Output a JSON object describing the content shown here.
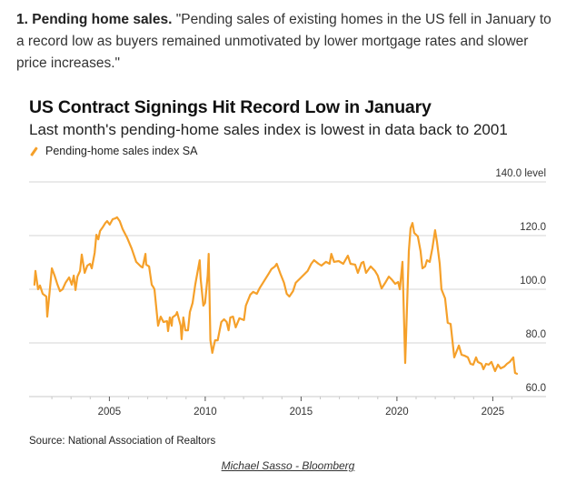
{
  "intro": {
    "lead": "1. Pending home sales.",
    "quote": " \"Pending sales of existing homes in the US fell in January to a record low as buyers remained unmotivated by lower mortgage rates and slower price increases.\""
  },
  "source": "Source: National Association of Realtors",
  "credit": "Michael Sasso - Bloomberg",
  "chart_data": {
    "type": "line",
    "title": "US Contract Signings Hit Record Low in January",
    "subtitle": "Last month's pending-home sales index is lowest in data back to 2001",
    "xlabel": "",
    "ylabel": "level",
    "xlim": [
      2001,
      2027.7
    ],
    "ylim": [
      60,
      140
    ],
    "yticks": [
      60,
      80,
      100,
      120,
      140
    ],
    "ytick_labels": [
      "60.0",
      "80.0",
      "100.0",
      "120.0",
      "140.0 level"
    ],
    "xticks": [
      2005,
      2010,
      2015,
      2020,
      2025
    ],
    "xtick_labels": [
      "2005",
      "2010",
      "2015",
      "2020",
      "2025"
    ],
    "minor_xticks": [
      2002,
      2003,
      2004,
      2006,
      2007,
      2008,
      2009,
      2011,
      2012,
      2013,
      2014,
      2016,
      2017,
      2018,
      2019,
      2021,
      2022,
      2023,
      2024,
      2026
    ],
    "grid": true,
    "legend": {
      "position": "top-left",
      "entries": [
        "Pending-home sales index SA"
      ]
    },
    "series": [
      {
        "name": "Pending-home sales index SA",
        "color": "#f5a02a",
        "points": [
          [
            2001.09,
            101.7
          ],
          [
            2001.14,
            106.8
          ],
          [
            2001.28,
            100.0
          ],
          [
            2001.38,
            101.4
          ],
          [
            2001.52,
            98.3
          ],
          [
            2001.71,
            97.3
          ],
          [
            2001.76,
            89.8
          ],
          [
            2002.0,
            107.8
          ],
          [
            2002.14,
            105.1
          ],
          [
            2002.28,
            102.0
          ],
          [
            2002.42,
            99.3
          ],
          [
            2002.56,
            100.0
          ],
          [
            2002.71,
            102.4
          ],
          [
            2002.9,
            104.4
          ],
          [
            2003.04,
            101.7
          ],
          [
            2003.14,
            105.1
          ],
          [
            2003.23,
            99.7
          ],
          [
            2003.33,
            104.7
          ],
          [
            2003.47,
            106.8
          ],
          [
            2003.56,
            112.9
          ],
          [
            2003.71,
            106.1
          ],
          [
            2003.85,
            108.8
          ],
          [
            2003.99,
            109.5
          ],
          [
            2004.08,
            107.8
          ],
          [
            2004.23,
            113.6
          ],
          [
            2004.32,
            120.3
          ],
          [
            2004.42,
            118.6
          ],
          [
            2004.51,
            121.7
          ],
          [
            2004.65,
            123.1
          ],
          [
            2004.79,
            124.7
          ],
          [
            2004.88,
            125.4
          ],
          [
            2005.02,
            124.1
          ],
          [
            2005.17,
            126.1
          ],
          [
            2005.31,
            126.4
          ],
          [
            2005.4,
            126.8
          ],
          [
            2005.54,
            125.4
          ],
          [
            2005.69,
            122.4
          ],
          [
            2005.92,
            119.3
          ],
          [
            2006.16,
            115.2
          ],
          [
            2006.4,
            110.2
          ],
          [
            2006.64,
            108.5
          ],
          [
            2006.73,
            108.1
          ],
          [
            2006.88,
            113.2
          ],
          [
            2006.92,
            109.2
          ],
          [
            2007.07,
            108.5
          ],
          [
            2007.21,
            101.7
          ],
          [
            2007.3,
            100.7
          ],
          [
            2007.35,
            100.0
          ],
          [
            2007.54,
            86.4
          ],
          [
            2007.68,
            89.8
          ],
          [
            2007.82,
            87.8
          ],
          [
            2008.01,
            88.1
          ],
          [
            2008.06,
            84.4
          ],
          [
            2008.15,
            89.5
          ],
          [
            2008.25,
            86.4
          ],
          [
            2008.29,
            89.5
          ],
          [
            2008.48,
            90.5
          ],
          [
            2008.53,
            91.5
          ],
          [
            2008.72,
            86.4
          ],
          [
            2008.77,
            81.4
          ],
          [
            2008.86,
            89.5
          ],
          [
            2008.96,
            84.7
          ],
          [
            2009.1,
            84.7
          ],
          [
            2009.2,
            91.5
          ],
          [
            2009.34,
            94.9
          ],
          [
            2009.48,
            101.7
          ],
          [
            2009.71,
            110.8
          ],
          [
            2009.76,
            104.1
          ],
          [
            2009.9,
            93.9
          ],
          [
            2009.99,
            94.9
          ],
          [
            2010.13,
            105.1
          ],
          [
            2010.18,
            113.2
          ],
          [
            2010.27,
            81.0
          ],
          [
            2010.37,
            76.3
          ],
          [
            2010.51,
            81.0
          ],
          [
            2010.65,
            81.0
          ],
          [
            2010.84,
            87.8
          ],
          [
            2010.98,
            88.8
          ],
          [
            2011.12,
            87.8
          ],
          [
            2011.22,
            84.7
          ],
          [
            2011.31,
            89.5
          ],
          [
            2011.45,
            89.8
          ],
          [
            2011.59,
            85.8
          ],
          [
            2011.78,
            89.2
          ],
          [
            2012.02,
            88.5
          ],
          [
            2012.12,
            93.9
          ],
          [
            2012.35,
            98.0
          ],
          [
            2012.5,
            99.0
          ],
          [
            2012.69,
            98.3
          ],
          [
            2012.83,
            100.3
          ],
          [
            2013.07,
            103.1
          ],
          [
            2013.31,
            105.8
          ],
          [
            2013.45,
            107.5
          ],
          [
            2013.64,
            108.5
          ],
          [
            2013.73,
            109.5
          ],
          [
            2013.92,
            105.8
          ],
          [
            2014.11,
            102.4
          ],
          [
            2014.25,
            98.3
          ],
          [
            2014.39,
            97.3
          ],
          [
            2014.58,
            99.3
          ],
          [
            2014.72,
            102.4
          ],
          [
            2014.96,
            104.1
          ],
          [
            2015.2,
            105.8
          ],
          [
            2015.34,
            106.8
          ],
          [
            2015.53,
            109.5
          ],
          [
            2015.68,
            110.8
          ],
          [
            2015.91,
            109.5
          ],
          [
            2016.06,
            108.8
          ],
          [
            2016.3,
            110.2
          ],
          [
            2016.49,
            109.5
          ],
          [
            2016.58,
            113.2
          ],
          [
            2016.72,
            110.2
          ],
          [
            2016.96,
            110.5
          ],
          [
            2017.2,
            109.5
          ],
          [
            2017.44,
            112.5
          ],
          [
            2017.58,
            109.5
          ],
          [
            2017.82,
            109.2
          ],
          [
            2017.96,
            106.1
          ],
          [
            2018.15,
            109.8
          ],
          [
            2018.25,
            110.2
          ],
          [
            2018.39,
            106.1
          ],
          [
            2018.63,
            108.5
          ],
          [
            2018.86,
            106.8
          ],
          [
            2019.0,
            105.1
          ],
          [
            2019.2,
            100.3
          ],
          [
            2019.39,
            102.4
          ],
          [
            2019.58,
            104.7
          ],
          [
            2019.72,
            103.7
          ],
          [
            2019.91,
            102.0
          ],
          [
            2020.06,
            102.7
          ],
          [
            2020.15,
            100.0
          ],
          [
            2020.29,
            110.2
          ],
          [
            2020.43,
            72.5
          ],
          [
            2020.62,
            114.2
          ],
          [
            2020.71,
            122.7
          ],
          [
            2020.81,
            124.7
          ],
          [
            2020.9,
            121.0
          ],
          [
            2021.09,
            119.7
          ],
          [
            2021.23,
            114.2
          ],
          [
            2021.33,
            107.8
          ],
          [
            2021.47,
            108.5
          ],
          [
            2021.57,
            110.8
          ],
          [
            2021.71,
            110.2
          ],
          [
            2021.85,
            115.3
          ],
          [
            2021.99,
            122.0
          ],
          [
            2022.09,
            117.6
          ],
          [
            2022.23,
            109.5
          ],
          [
            2022.32,
            100.0
          ],
          [
            2022.51,
            96.6
          ],
          [
            2022.65,
            87.5
          ],
          [
            2022.8,
            87.1
          ],
          [
            2022.99,
            74.6
          ],
          [
            2023.23,
            79.0
          ],
          [
            2023.37,
            75.6
          ],
          [
            2023.51,
            75.3
          ],
          [
            2023.7,
            74.6
          ],
          [
            2023.84,
            72.2
          ],
          [
            2023.98,
            71.9
          ],
          [
            2024.13,
            74.6
          ],
          [
            2024.22,
            72.9
          ],
          [
            2024.41,
            72.2
          ],
          [
            2024.51,
            70.2
          ],
          [
            2024.65,
            72.2
          ],
          [
            2024.79,
            71.9
          ],
          [
            2024.93,
            72.9
          ],
          [
            2025.12,
            69.5
          ],
          [
            2025.27,
            71.9
          ],
          [
            2025.41,
            70.5
          ],
          [
            2025.6,
            71.2
          ],
          [
            2025.74,
            72.2
          ],
          [
            2025.88,
            72.9
          ],
          [
            2026.07,
            74.6
          ],
          [
            2026.16,
            68.8
          ],
          [
            2026.26,
            68.5
          ]
        ]
      }
    ]
  }
}
